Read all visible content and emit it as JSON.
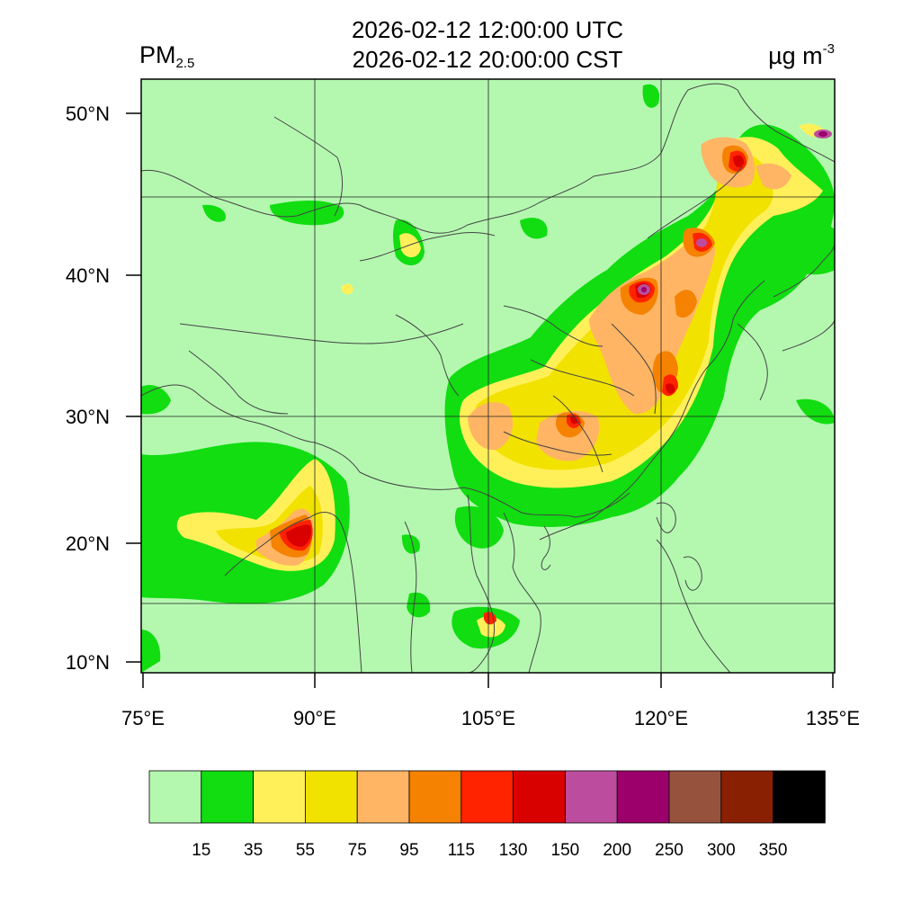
{
  "title": {
    "utc": "2026-02-12 12:00:00 UTC",
    "cst": "2026-02-12 20:00:00 CST"
  },
  "variable": {
    "main": "PM",
    "sub": "2.5"
  },
  "units": {
    "main": "µg m",
    "sup": "-3"
  },
  "map": {
    "lat_labels": [
      "50°N",
      "40°N",
      "30°N",
      "20°N",
      "10°N"
    ],
    "lon_labels": [
      "75°E",
      "90°E",
      "105°E",
      "120°E",
      "135°E"
    ],
    "colors": {
      "background": "#b4f8b0",
      "green": "#11dd11",
      "yellow": "#fff05a",
      "gold": "#f2e200",
      "light_orange": "#ffb564",
      "orange": "#f58200",
      "red": "#ff2300",
      "dark_red": "#d90000",
      "pink": "#bc4d9e",
      "purple": "#9b006b",
      "border": "#444444"
    }
  },
  "colorbar": {
    "colors": [
      "#b4f8b0",
      "#11dd11",
      "#fff05a",
      "#f2e200",
      "#ffb564",
      "#f58200",
      "#ff2300",
      "#d90000",
      "#bc4d9e",
      "#9b006b",
      "#96523c",
      "#8a2002",
      "#000000"
    ],
    "labels": [
      "15",
      "35",
      "55",
      "75",
      "95",
      "115",
      "130",
      "150",
      "200",
      "250",
      "300",
      "350"
    ]
  }
}
